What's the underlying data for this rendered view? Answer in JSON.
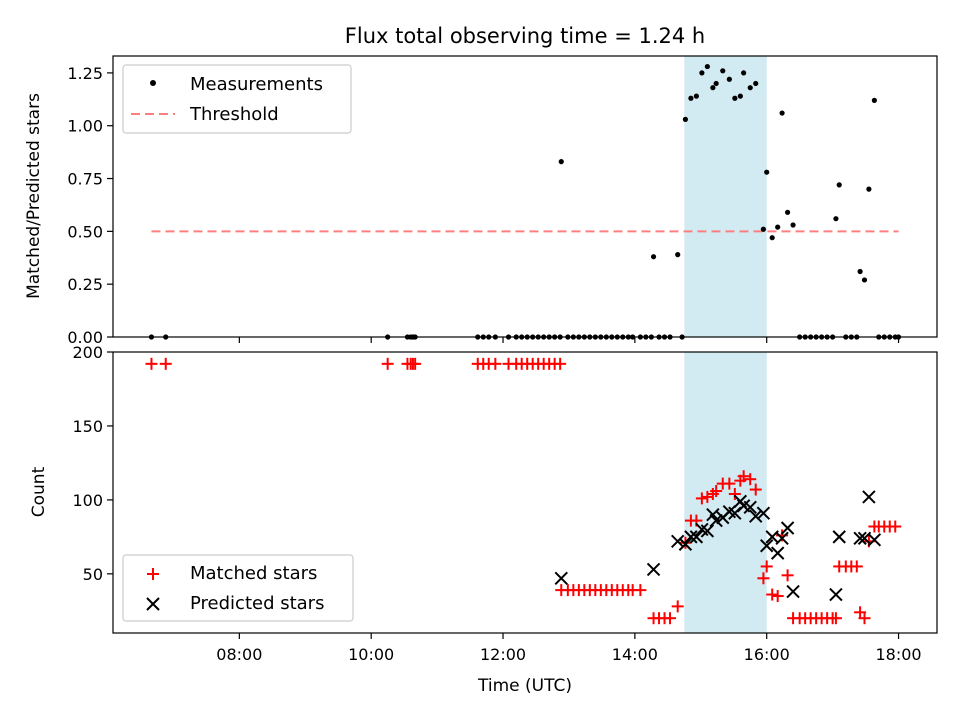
{
  "chart_data": [
    {
      "type": "scatter",
      "title": "Flux total observing time = 1.24 h",
      "xlabel": "",
      "ylabel": "Matched/Predicted stars",
      "xlim": [
        "06:05",
        "18:35"
      ],
      "ylim": [
        0,
        1.33
      ],
      "yticks": [
        "0.00",
        "0.25",
        "0.50",
        "0.75",
        "1.00",
        "1.25"
      ],
      "grid": false,
      "legend_position": "upper-left",
      "shaded_region": {
        "x_start": "14:45",
        "x_end": "16:00",
        "color": "#add8e6"
      },
      "series": [
        {
          "name": "Measurements",
          "marker": "dot",
          "color": "#000000",
          "points": [
            [
              "06:40",
              0
            ],
            [
              "06:53",
              0
            ],
            [
              "10:15",
              0
            ],
            [
              "10:33",
              0
            ],
            [
              "10:36",
              0
            ],
            [
              "10:38",
              0
            ],
            [
              "10:40",
              0
            ],
            [
              "11:37",
              0
            ],
            [
              "11:42",
              0
            ],
            [
              "11:47",
              0
            ],
            [
              "11:53",
              0
            ],
            [
              "12:05",
              0
            ],
            [
              "12:12",
              0
            ],
            [
              "12:17",
              0
            ],
            [
              "12:22",
              0
            ],
            [
              "12:27",
              0
            ],
            [
              "12:32",
              0
            ],
            [
              "12:37",
              0
            ],
            [
              "12:42",
              0
            ],
            [
              "12:47",
              0
            ],
            [
              "12:52",
              0
            ],
            [
              "12:53",
              0.83
            ],
            [
              "12:59",
              0
            ],
            [
              "13:04",
              0
            ],
            [
              "13:09",
              0
            ],
            [
              "13:14",
              0
            ],
            [
              "13:19",
              0
            ],
            [
              "13:24",
              0
            ],
            [
              "13:29",
              0
            ],
            [
              "13:34",
              0
            ],
            [
              "13:39",
              0
            ],
            [
              "13:44",
              0
            ],
            [
              "13:49",
              0
            ],
            [
              "13:54",
              0
            ],
            [
              "13:58",
              0
            ],
            [
              "14:05",
              0
            ],
            [
              "14:10",
              0
            ],
            [
              "14:15",
              0
            ],
            [
              "14:17",
              0.38
            ],
            [
              "14:22",
              0
            ],
            [
              "14:27",
              0
            ],
            [
              "14:32",
              0
            ],
            [
              "14:39",
              0.39
            ],
            [
              "14:43",
              0
            ],
            [
              "14:46",
              1.03
            ],
            [
              "14:51",
              1.13
            ],
            [
              "14:56",
              1.14
            ],
            [
              "15:01",
              1.25
            ],
            [
              "15:06",
              1.28
            ],
            [
              "15:11",
              1.18
            ],
            [
              "15:14",
              1.2
            ],
            [
              "15:20",
              1.26
            ],
            [
              "15:26",
              1.22
            ],
            [
              "15:31",
              1.13
            ],
            [
              "15:36",
              1.14
            ],
            [
              "15:39",
              1.25
            ],
            [
              "15:45",
              1.18
            ],
            [
              "15:50",
              1.2
            ],
            [
              "15:57",
              0.51
            ],
            [
              "16:00",
              0.78
            ],
            [
              "16:05",
              0.47
            ],
            [
              "16:10",
              0.52
            ],
            [
              "16:14",
              1.06
            ],
            [
              "16:19",
              0.59
            ],
            [
              "16:24",
              0.53
            ],
            [
              "16:30",
              0
            ],
            [
              "16:35",
              0
            ],
            [
              "16:40",
              0
            ],
            [
              "16:45",
              0
            ],
            [
              "16:50",
              0
            ],
            [
              "16:55",
              0
            ],
            [
              "17:00",
              0
            ],
            [
              "17:03",
              0.56
            ],
            [
              "17:06",
              0.72
            ],
            [
              "17:12",
              0
            ],
            [
              "17:17",
              0
            ],
            [
              "17:22",
              0
            ],
            [
              "17:25",
              0.31
            ],
            [
              "17:29",
              0.27
            ],
            [
              "17:33",
              0.7
            ],
            [
              "17:38",
              1.12
            ],
            [
              "17:42",
              0
            ],
            [
              "17:47",
              0
            ],
            [
              "17:52",
              0
            ],
            [
              "17:57",
              0
            ],
            [
              "18:00",
              0
            ]
          ]
        },
        {
          "name": "Threshold",
          "line_style": "dashed",
          "color": "#ff7f7f",
          "points": [
            [
              "06:40",
              0.5
            ],
            [
              "18:00",
              0.5
            ]
          ]
        }
      ]
    },
    {
      "type": "scatter",
      "title": "",
      "xlabel": "Time (UTC)",
      "ylabel": "Count",
      "xlim": [
        "06:05",
        "18:35"
      ],
      "xticks": [
        "08:00",
        "10:00",
        "12:00",
        "14:00",
        "16:00",
        "18:00"
      ],
      "ylim": [
        10,
        200
      ],
      "yticks": [
        "50",
        "100",
        "150",
        "200"
      ],
      "grid": false,
      "legend_position": "lower-left",
      "shaded_region": {
        "x_start": "14:45",
        "x_end": "16:00",
        "color": "#add8e6"
      },
      "series": [
        {
          "name": "Matched stars",
          "marker": "plus",
          "color": "#ff0000",
          "points": [
            [
              "06:40",
              192
            ],
            [
              "06:53",
              192
            ],
            [
              "10:15",
              192
            ],
            [
              "10:33",
              192
            ],
            [
              "10:36",
              192
            ],
            [
              "10:38",
              192
            ],
            [
              "10:40",
              192
            ],
            [
              "11:37",
              192
            ],
            [
              "11:42",
              192
            ],
            [
              "11:47",
              192
            ],
            [
              "11:53",
              192
            ],
            [
              "12:05",
              192
            ],
            [
              "12:12",
              192
            ],
            [
              "12:17",
              192
            ],
            [
              "12:22",
              192
            ],
            [
              "12:27",
              192
            ],
            [
              "12:32",
              192
            ],
            [
              "12:37",
              192
            ],
            [
              "12:42",
              192
            ],
            [
              "12:47",
              192
            ],
            [
              "12:52",
              192
            ],
            [
              "12:53",
              39
            ],
            [
              "12:59",
              39
            ],
            [
              "13:04",
              39
            ],
            [
              "13:09",
              39
            ],
            [
              "13:14",
              39
            ],
            [
              "13:19",
              39
            ],
            [
              "13:24",
              39
            ],
            [
              "13:29",
              39
            ],
            [
              "13:34",
              39
            ],
            [
              "13:39",
              39
            ],
            [
              "13:44",
              39
            ],
            [
              "13:49",
              39
            ],
            [
              "13:54",
              39
            ],
            [
              "13:58",
              39
            ],
            [
              "14:05",
              39
            ],
            [
              "14:17",
              20
            ],
            [
              "14:22",
              20
            ],
            [
              "14:27",
              20
            ],
            [
              "14:32",
              20
            ],
            [
              "14:39",
              28
            ],
            [
              "14:46",
              71
            ],
            [
              "14:51",
              86
            ],
            [
              "14:56",
              86
            ],
            [
              "15:01",
              101
            ],
            [
              "15:06",
              102
            ],
            [
              "15:11",
              104
            ],
            [
              "15:14",
              106
            ],
            [
              "15:20",
              111
            ],
            [
              "15:26",
              111
            ],
            [
              "15:31",
              104
            ],
            [
              "15:36",
              113
            ],
            [
              "15:39",
              116
            ],
            [
              "15:45",
              114
            ],
            [
              "15:50",
              107
            ],
            [
              "15:57",
              47
            ],
            [
              "16:00",
              55
            ],
            [
              "16:05",
              36
            ],
            [
              "16:10",
              35
            ],
            [
              "16:14",
              76
            ],
            [
              "16:19",
              49
            ],
            [
              "16:24",
              20
            ],
            [
              "16:30",
              20
            ],
            [
              "16:35",
              20
            ],
            [
              "16:40",
              20
            ],
            [
              "16:45",
              20
            ],
            [
              "16:50",
              20
            ],
            [
              "16:55",
              20
            ],
            [
              "17:00",
              20
            ],
            [
              "17:03",
              20
            ],
            [
              "17:06",
              55
            ],
            [
              "17:12",
              55
            ],
            [
              "17:17",
              55
            ],
            [
              "17:22",
              55
            ],
            [
              "17:25",
              24
            ],
            [
              "17:29",
              20
            ],
            [
              "17:33",
              72
            ],
            [
              "17:38",
              82
            ],
            [
              "17:42",
              82
            ],
            [
              "17:47",
              82
            ],
            [
              "17:52",
              82
            ],
            [
              "17:57",
              82
            ]
          ]
        },
        {
          "name": "Predicted stars",
          "marker": "x",
          "color": "#000000",
          "points": [
            [
              "12:53",
              47
            ],
            [
              "14:17",
              53
            ],
            [
              "14:39",
              72
            ],
            [
              "14:46",
              70
            ],
            [
              "14:51",
              75
            ],
            [
              "14:56",
              75
            ],
            [
              "15:01",
              80
            ],
            [
              "15:06",
              79
            ],
            [
              "15:11",
              90
            ],
            [
              "15:14",
              86
            ],
            [
              "15:20",
              88
            ],
            [
              "15:26",
              92
            ],
            [
              "15:31",
              91
            ],
            [
              "15:36",
              99
            ],
            [
              "15:39",
              96
            ],
            [
              "15:45",
              95
            ],
            [
              "15:50",
              89
            ],
            [
              "15:57",
              91
            ],
            [
              "16:00",
              69
            ],
            [
              "16:05",
              75
            ],
            [
              "16:10",
              64
            ],
            [
              "16:14",
              74
            ],
            [
              "16:19",
              81
            ],
            [
              "16:24",
              38
            ],
            [
              "17:03",
              36
            ],
            [
              "17:06",
              75
            ],
            [
              "17:25",
              74
            ],
            [
              "17:29",
              74
            ],
            [
              "17:33",
              102
            ],
            [
              "17:38",
              73
            ]
          ]
        }
      ]
    }
  ]
}
